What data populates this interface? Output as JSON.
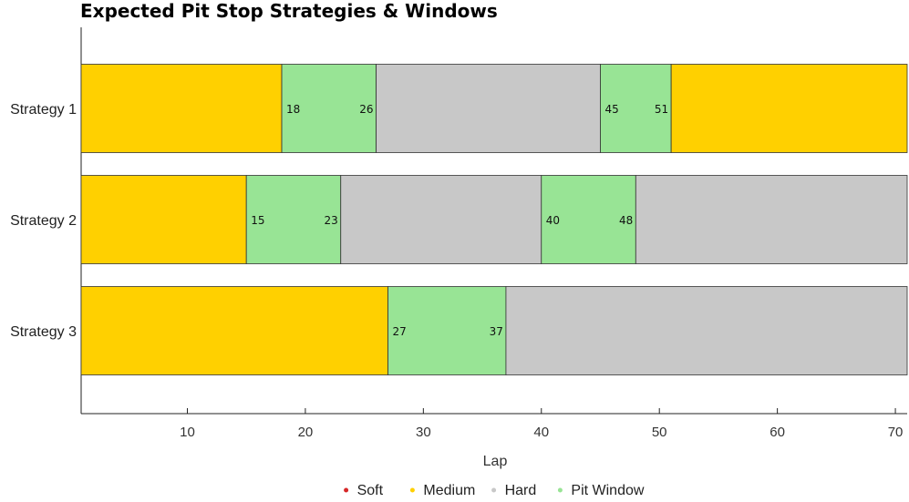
{
  "chart_data": {
    "type": "bar",
    "orientation": "horizontal-stacked",
    "title": "Expected Pit Stop Strategies & Windows",
    "xlabel": "Lap",
    "ylabel": "",
    "xlim": [
      1,
      71
    ],
    "xticks": [
      10,
      20,
      30,
      40,
      50,
      60,
      70
    ],
    "grid": false,
    "legend_placement": "bottom",
    "legend": [
      {
        "name": "Soft",
        "color": "#d62728"
      },
      {
        "name": "Medium",
        "color": "#ffd000"
      },
      {
        "name": "Hard",
        "color": "#c8c8c8"
      },
      {
        "name": "Pit Window",
        "color": "#98e495"
      }
    ],
    "strategies": [
      {
        "name": "Strategy 1",
        "segments": [
          {
            "compound": "Medium",
            "start": 1,
            "end": 18
          },
          {
            "compound": "Pit Window",
            "start": 18,
            "end": 26
          },
          {
            "compound": "Hard",
            "start": 26,
            "end": 45
          },
          {
            "compound": "Pit Window",
            "start": 45,
            "end": 51
          },
          {
            "compound": "Medium",
            "start": 51,
            "end": 71
          }
        ],
        "windows": [
          [
            18,
            26
          ],
          [
            45,
            51
          ]
        ]
      },
      {
        "name": "Strategy 2",
        "segments": [
          {
            "compound": "Medium",
            "start": 1,
            "end": 15
          },
          {
            "compound": "Pit Window",
            "start": 15,
            "end": 23
          },
          {
            "compound": "Hard",
            "start": 23,
            "end": 40
          },
          {
            "compound": "Pit Window",
            "start": 40,
            "end": 48
          },
          {
            "compound": "Hard",
            "start": 48,
            "end": 71
          }
        ],
        "windows": [
          [
            15,
            23
          ],
          [
            40,
            48
          ]
        ]
      },
      {
        "name": "Strategy 3",
        "segments": [
          {
            "compound": "Medium",
            "start": 1,
            "end": 27
          },
          {
            "compound": "Pit Window",
            "start": 27,
            "end": 37
          },
          {
            "compound": "Hard",
            "start": 37,
            "end": 71
          }
        ],
        "windows": [
          [
            27,
            37
          ]
        ]
      }
    ]
  }
}
